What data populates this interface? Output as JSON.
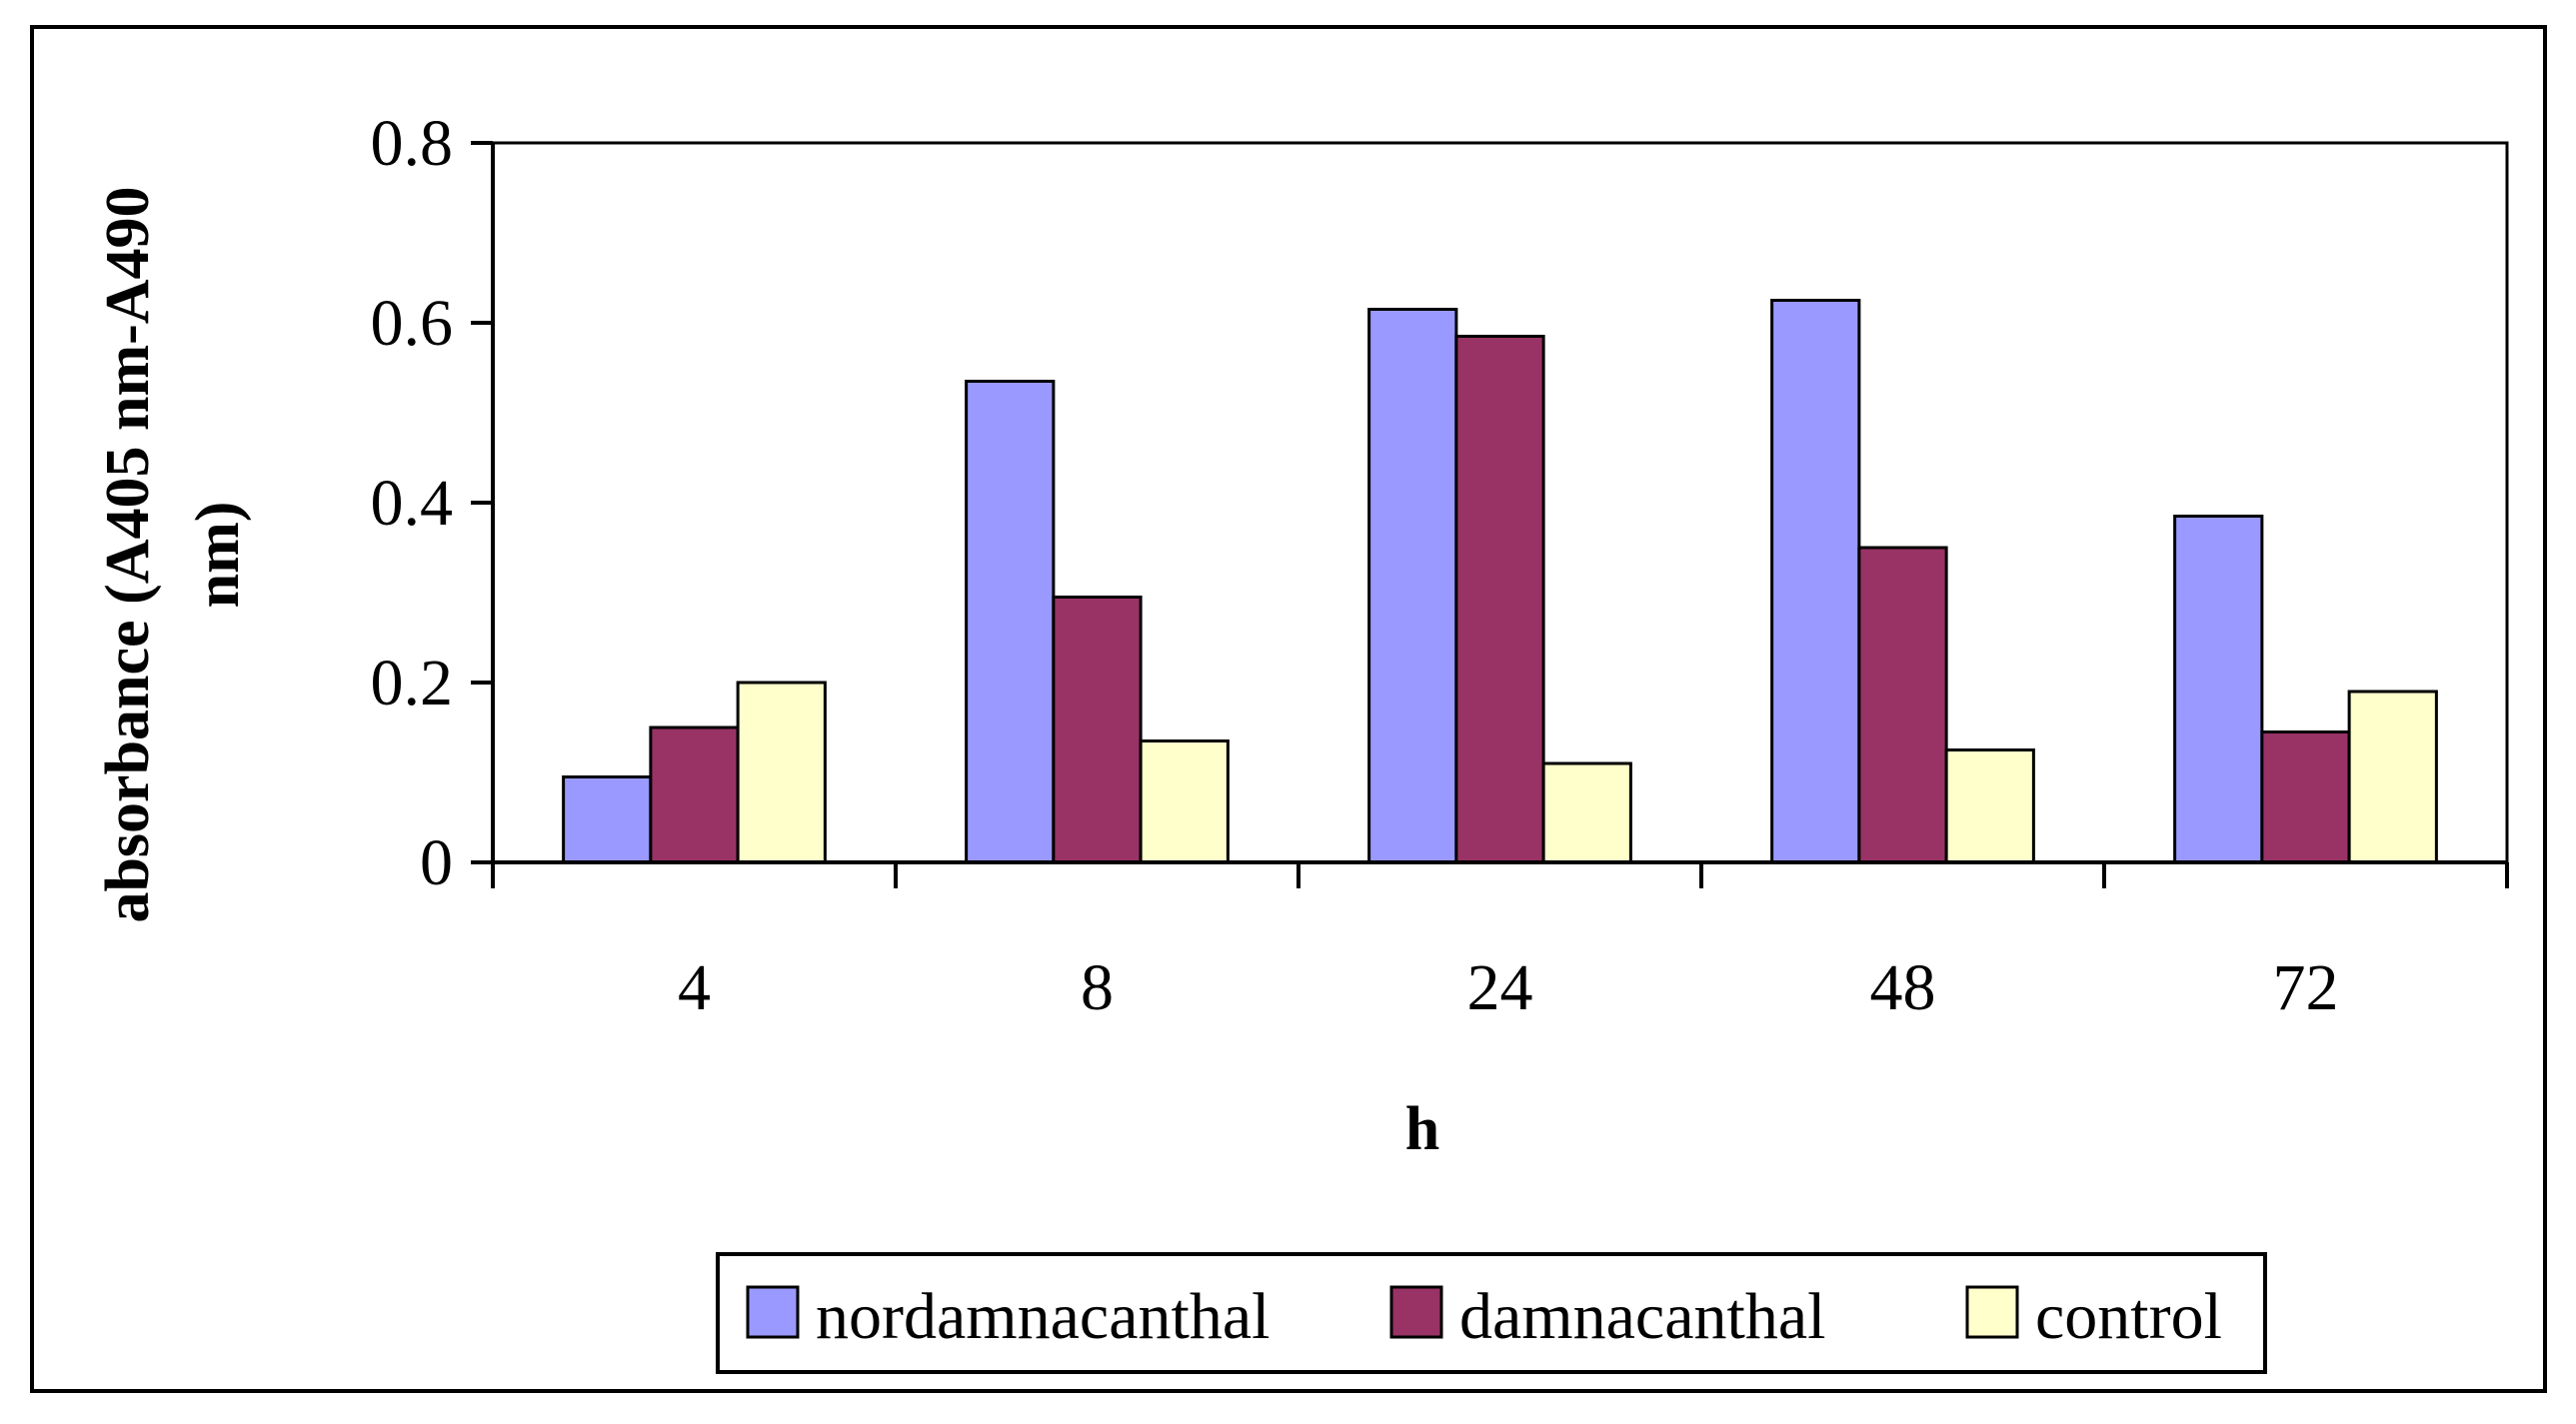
{
  "chart_data": {
    "type": "bar",
    "title": "",
    "xlabel": "h",
    "ylabel_lines": [
      "absorbance (A405 nm-A490",
      "nm)"
    ],
    "categories": [
      "4",
      "8",
      "24",
      "48",
      "72"
    ],
    "ylim": [
      0,
      0.8
    ],
    "yticks": [
      0,
      0.2,
      0.4,
      0.6,
      0.8
    ],
    "ytick_labels": [
      "0",
      "0.2",
      "0.4",
      "0.6",
      "0.8"
    ],
    "grid": false,
    "legend_position": "bottom",
    "series": [
      {
        "name": "nordamnacanthal",
        "color": "#9999ff",
        "values": [
          0.095,
          0.535,
          0.615,
          0.625,
          0.385
        ]
      },
      {
        "name": "damnacanthal",
        "color": "#993366",
        "values": [
          0.15,
          0.295,
          0.585,
          0.35,
          0.145
        ]
      },
      {
        "name": "control",
        "color": "#ffffcc",
        "values": [
          0.2,
          0.135,
          0.11,
          0.125,
          0.19
        ]
      }
    ]
  }
}
